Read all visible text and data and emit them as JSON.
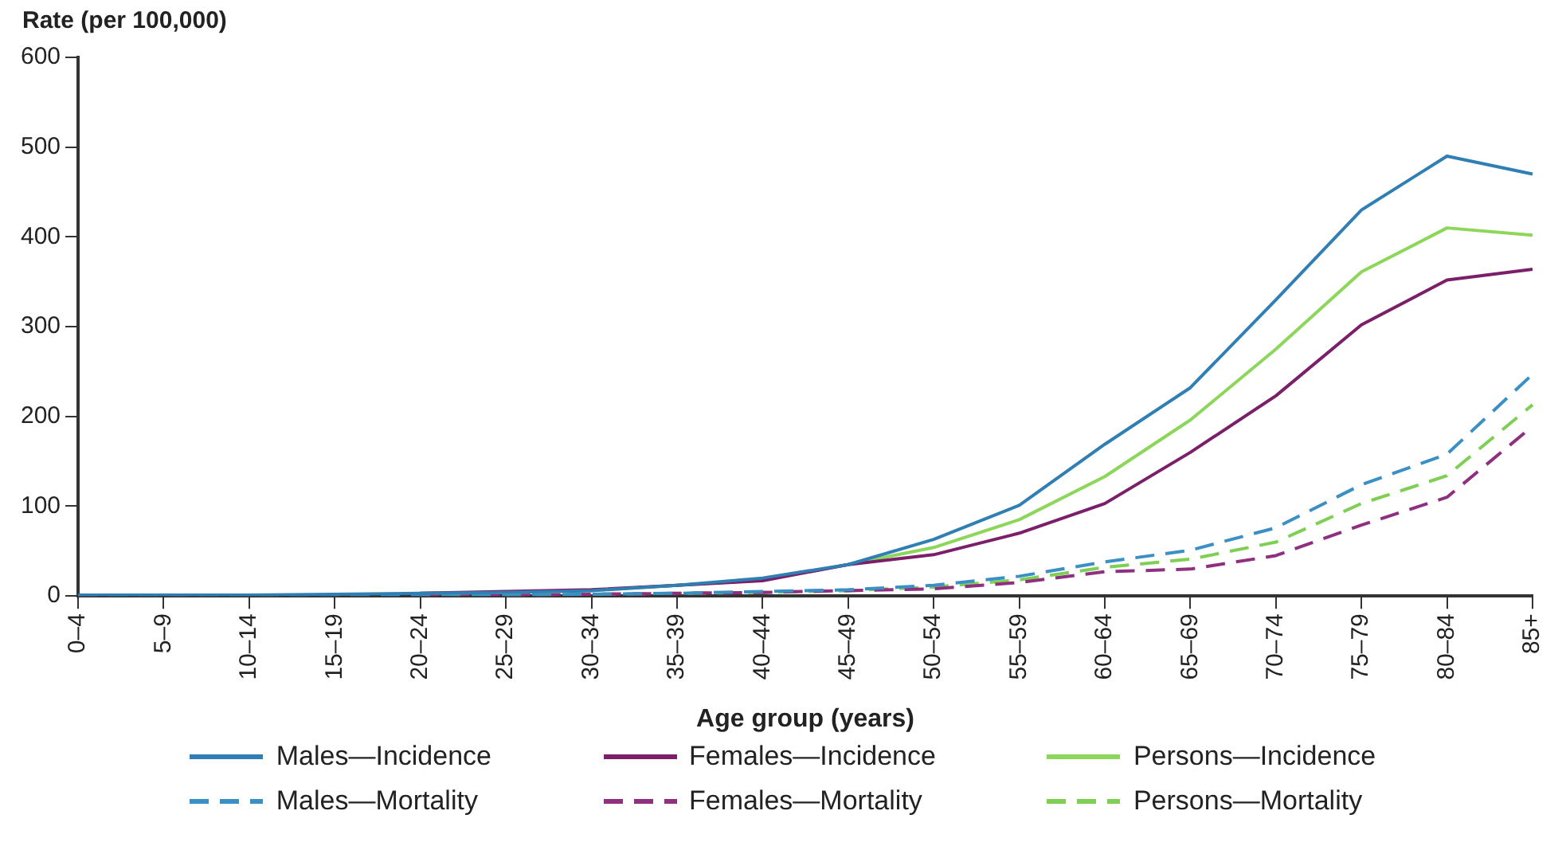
{
  "chart_data": {
    "type": "line",
    "xlabel": "Age group (years)",
    "ylabel": "Rate (per 100,000)",
    "categories": [
      "0–4",
      "5–9",
      "10–14",
      "15–19",
      "20–24",
      "25–29",
      "30–34",
      "35–39",
      "40–44",
      "45–49",
      "50–54",
      "55–59",
      "60–64",
      "65–69",
      "70–74",
      "75–79",
      "80–84",
      "85+"
    ],
    "ylim": [
      0,
      600
    ],
    "yticks": [
      0,
      100,
      200,
      300,
      400,
      500,
      600
    ],
    "grid": false,
    "legend": "bottom",
    "marker": "none",
    "series": [
      {
        "name": "Males—Incidence",
        "color": "#2f7fb5",
        "line_style": "solid",
        "values": [
          1,
          1,
          1,
          2,
          3,
          4,
          6,
          12,
          20,
          35,
          63,
          101,
          169,
          232,
          330,
          430,
          490,
          470
        ]
      },
      {
        "name": "Females—Incidence",
        "color": "#7b1f6a",
        "line_style": "solid",
        "values": [
          null,
          null,
          null,
          null,
          3,
          5,
          7,
          12,
          17,
          35,
          46,
          70,
          103,
          160,
          223,
          302,
          352,
          364
        ]
      },
      {
        "name": "Persons—Incidence",
        "color": "#8cd65a",
        "line_style": "solid",
        "values": [
          null,
          null,
          null,
          null,
          3,
          4,
          6,
          12,
          18,
          35,
          54,
          85,
          133,
          196,
          275,
          361,
          410,
          402
        ]
      },
      {
        "name": "Males—Mortality",
        "color": "#3a8fc4",
        "line_style": "dashed",
        "values": [
          0,
          0,
          0,
          0,
          1,
          1,
          2,
          3,
          5,
          7,
          12,
          22,
          38,
          51,
          76,
          124,
          158,
          247
        ]
      },
      {
        "name": "Females—Mortality",
        "color": "#8e2f7f",
        "line_style": "dashed",
        "values": [
          null,
          null,
          null,
          null,
          1,
          1,
          2,
          3,
          4,
          6,
          8,
          15,
          27,
          30,
          45,
          79,
          110,
          189
        ]
      },
      {
        "name": "Persons—Mortality",
        "color": "#7fcf55",
        "line_style": "dashed",
        "values": [
          null,
          null,
          null,
          null,
          null,
          1,
          2,
          3,
          4,
          6,
          10,
          18,
          32,
          41,
          60,
          103,
          134,
          213
        ]
      }
    ]
  }
}
